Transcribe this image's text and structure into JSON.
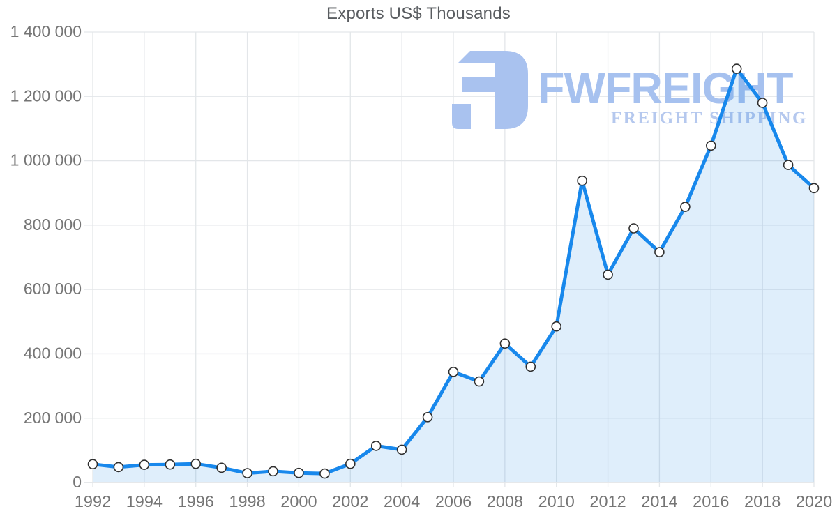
{
  "title": "Exports US$ Thousands",
  "watermark": {
    "brand": "FWFREIGHT",
    "tagline": "FREIGHT SHIPPING",
    "logo_icon": "fwfreight-logo-mark",
    "logo_color": "#a9c2ef",
    "brand_color": "#a6c1ef",
    "tagline_color": "#b5c8ee"
  },
  "chart_data": {
    "type": "area",
    "title": "Exports US$ Thousands",
    "xlabel": "",
    "ylabel": "",
    "x": [
      1992,
      1993,
      1994,
      1995,
      1996,
      1997,
      1998,
      1999,
      2000,
      2001,
      2002,
      2003,
      2004,
      2005,
      2006,
      2007,
      2008,
      2009,
      2010,
      2011,
      2012,
      2013,
      2014,
      2015,
      2016,
      2017,
      2018,
      2019,
      2020
    ],
    "values": [
      57000,
      48000,
      55000,
      56000,
      58000,
      46000,
      29000,
      35000,
      30000,
      28000,
      58000,
      114000,
      102000,
      203000,
      344000,
      314000,
      432000,
      360000,
      485000,
      938000,
      646000,
      790000,
      716000,
      857000,
      1047000,
      1286000,
      1180000,
      987000,
      915000
    ],
    "ylim": [
      0,
      1400000
    ],
    "ytick_step": 200000,
    "ytick_labels": [
      "0",
      "200 000",
      "400 000",
      "600 000",
      "800 000",
      "1 000 000",
      "1 200 000",
      "1 400 000"
    ],
    "xtick_labels": [
      "1992",
      "1994",
      "1996",
      "1998",
      "2000",
      "2002",
      "2004",
      "2006",
      "2008",
      "2010",
      "2012",
      "2014",
      "2016",
      "2018",
      "2020"
    ],
    "grid": true,
    "legend_position": "none",
    "line_color": "#1888ec",
    "area_color": "#1e88e5",
    "area_opacity": 0.14,
    "marker_fill": "#ffffff",
    "marker_stroke": "#2f2f2f",
    "grid_color": "#e3e6e9",
    "baseline_color": "#d7dadd",
    "axis_label_color": "#757575",
    "title_color": "#595c60"
  }
}
